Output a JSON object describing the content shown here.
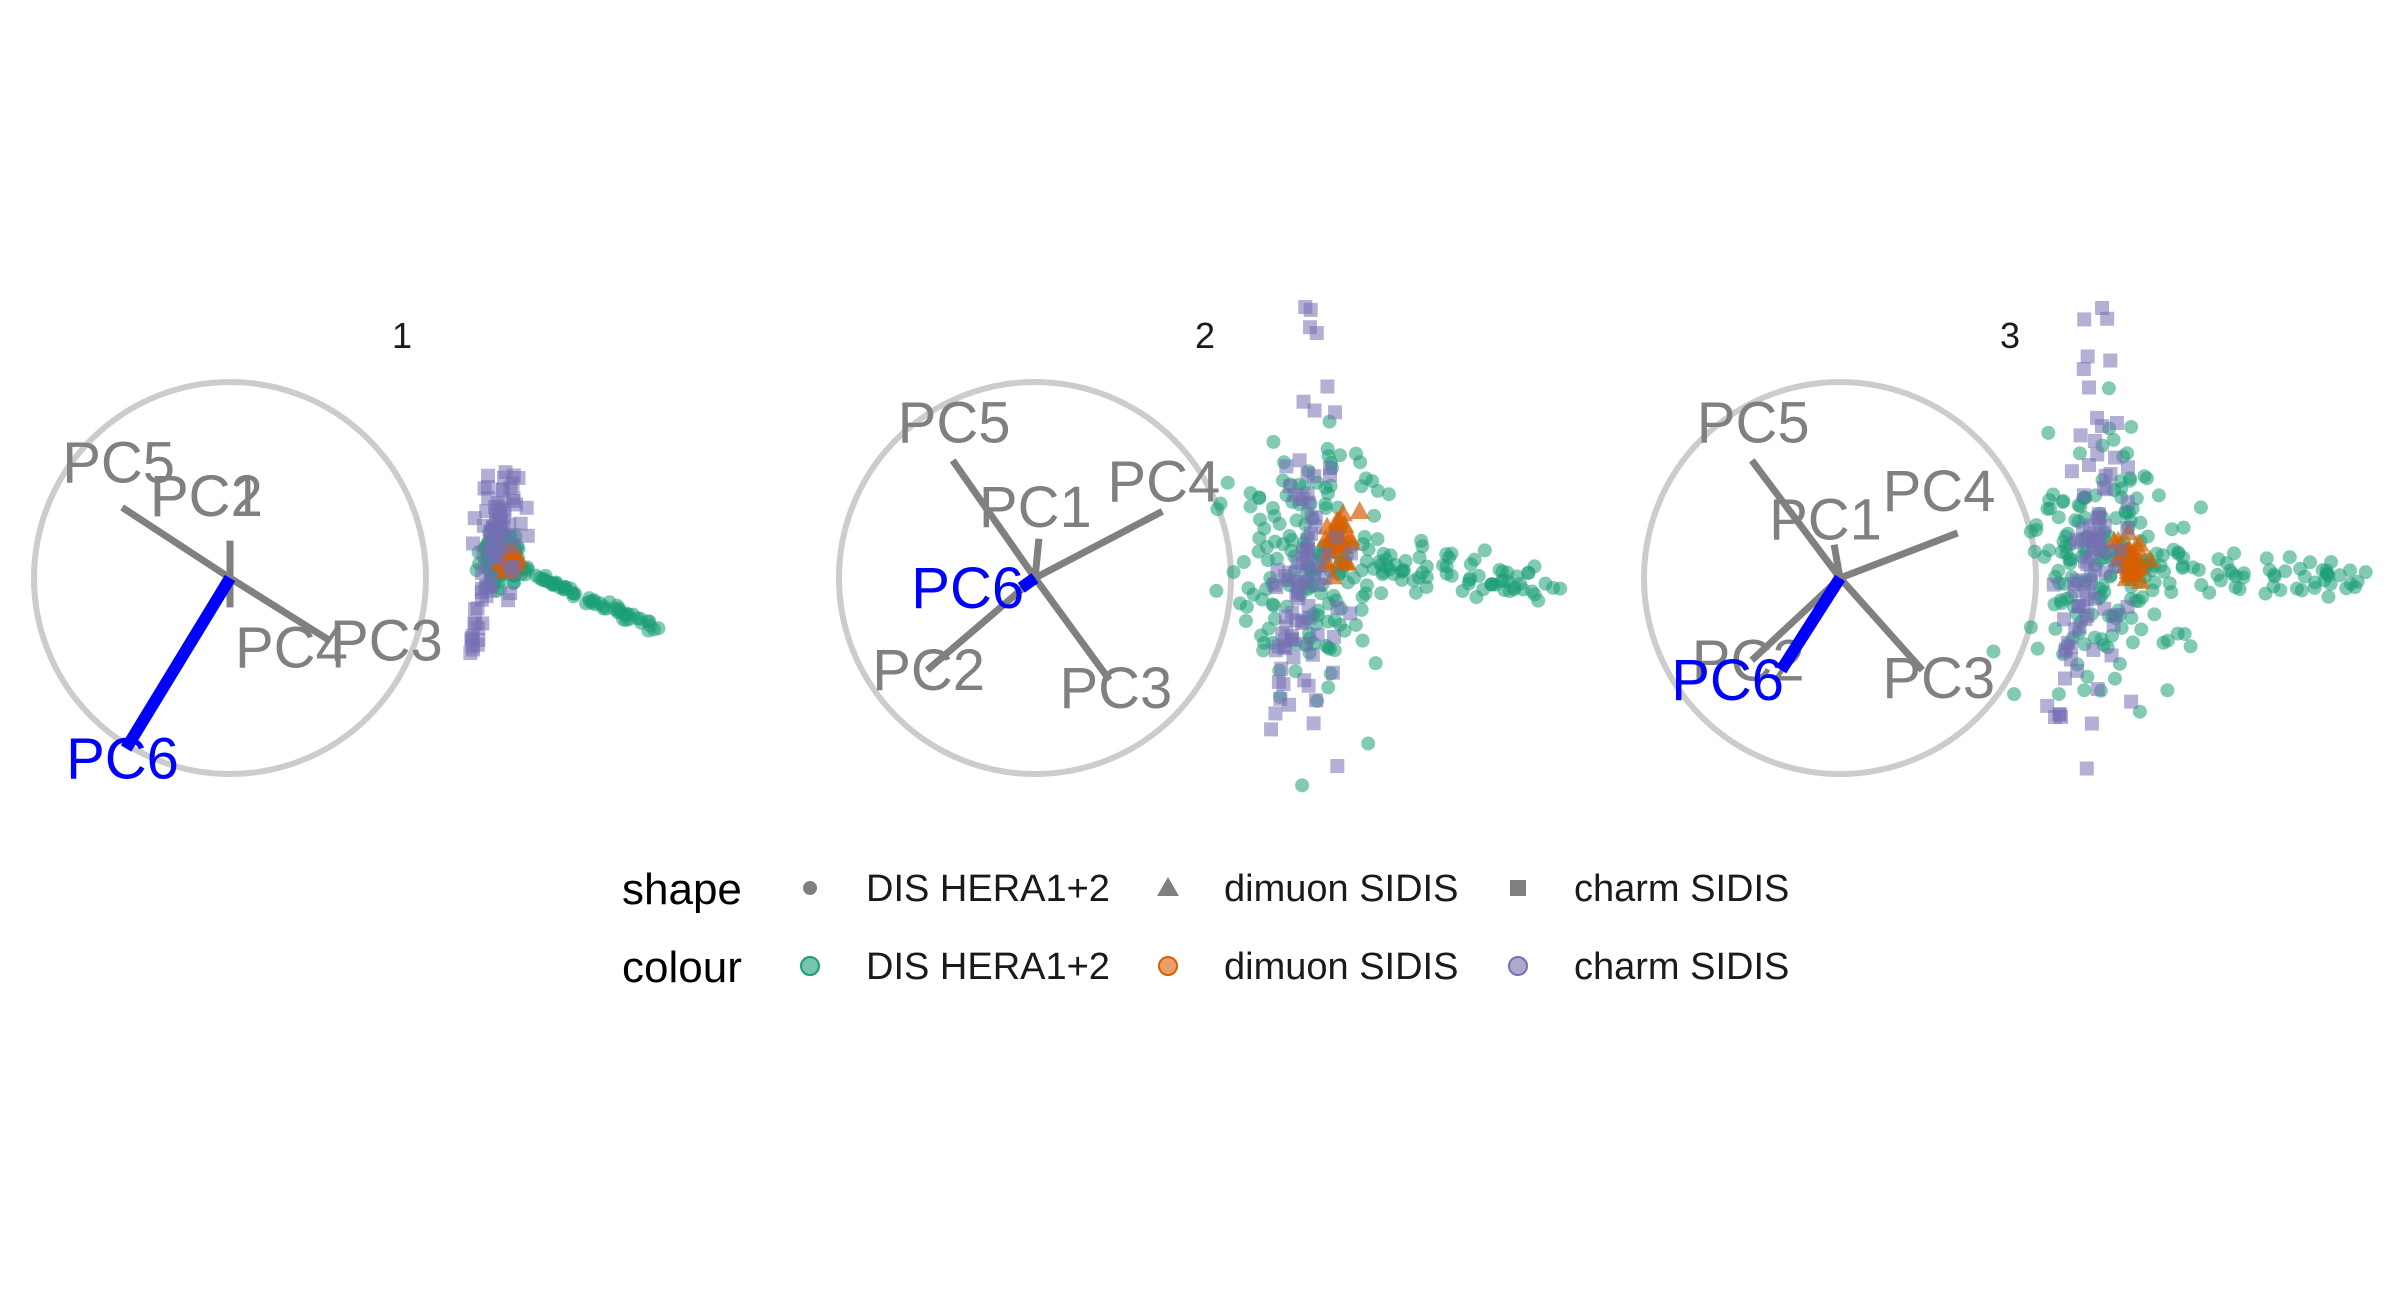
{
  "chart_data": {
    "type": "scatter",
    "description_kind": "small-multiple PCA biplot projections",
    "panels": [
      {
        "title": "1",
        "highlight": "PC6",
        "loadings": [
          {
            "name": "PC1",
            "x": 0.0,
            "y": 0.19,
            "highlight": false
          },
          {
            "name": "PC2",
            "x": 0.0,
            "y": 0.19,
            "highlight": false
          },
          {
            "name": "PC3",
            "x": 0.51,
            "y": -0.32,
            "highlight": false
          },
          {
            "name": "PC4",
            "x": 0.0,
            "y": -0.15,
            "highlight": false
          },
          {
            "name": "PC5",
            "x": -0.55,
            "y": 0.36,
            "highlight": false
          },
          {
            "name": "PC6",
            "x": -0.53,
            "y": -0.87,
            "highlight": true
          }
        ],
        "clusters": {
          "DIS HERA1+2": {
            "center": [
              0.0,
              0.0
            ],
            "spread": [
              0.05,
              0.06
            ],
            "tail": [
              0.8,
              -0.35
            ]
          },
          "dimuon SIDIS": {
            "center": [
              0.05,
              0.0
            ],
            "spread": [
              0.03,
              0.03
            ]
          },
          "charm SIDIS": {
            "center": [
              0.0,
              0.18
            ],
            "spread": [
              0.06,
              0.15
            ],
            "tail": [
              -0.15,
              -0.65
            ]
          }
        }
      },
      {
        "title": "2",
        "highlight": "PC6",
        "loadings": [
          {
            "name": "PC1",
            "x": 0.02,
            "y": 0.2,
            "highlight": false
          },
          {
            "name": "PC2",
            "x": -0.55,
            "y": -0.47,
            "highlight": false
          },
          {
            "name": "PC3",
            "x": 0.38,
            "y": -0.52,
            "highlight": false
          },
          {
            "name": "PC4",
            "x": 0.65,
            "y": 0.34,
            "highlight": false
          },
          {
            "name": "PC5",
            "x": -0.42,
            "y": 0.6,
            "highlight": false
          },
          {
            "name": "PC6",
            "x": -0.07,
            "y": -0.05,
            "highlight": true
          }
        ],
        "clusters": {
          "DIS HERA1+2": {
            "center": [
              0.0,
              0.0
            ],
            "spread": [
              0.2,
              0.35
            ],
            "tail": [
              1.2,
              -0.1
            ]
          },
          "dimuon SIDIS": {
            "center": [
              0.15,
              0.1
            ],
            "spread": [
              0.04,
              0.08
            ]
          },
          "charm SIDIS": {
            "center": [
              0.0,
              0.1
            ],
            "spread": [
              0.08,
              0.5
            ],
            "tail": [
              -0.2,
              -0.9
            ]
          }
        }
      },
      {
        "title": "3",
        "highlight": "PC6",
        "loadings": [
          {
            "name": "PC1",
            "x": -0.03,
            "y": 0.17,
            "highlight": false
          },
          {
            "name": "PC2",
            "x": -0.45,
            "y": -0.42,
            "highlight": false
          },
          {
            "name": "PC3",
            "x": 0.42,
            "y": -0.47,
            "highlight": false
          },
          {
            "name": "PC4",
            "x": 0.6,
            "y": 0.23,
            "highlight": false
          },
          {
            "name": "PC5",
            "x": -0.45,
            "y": 0.6,
            "highlight": false
          },
          {
            "name": "PC6",
            "x": -0.3,
            "y": -0.47,
            "highlight": true
          }
        ],
        "clusters": {
          "DIS HERA1+2": {
            "center": [
              0.0,
              0.0
            ],
            "spread": [
              0.2,
              0.3
            ],
            "tail": [
              1.3,
              -0.1
            ]
          },
          "dimuon SIDIS": {
            "center": [
              0.15,
              0.0
            ],
            "spread": [
              0.04,
              0.06
            ]
          },
          "charm SIDIS": {
            "center": [
              0.0,
              0.15
            ],
            "spread": [
              0.08,
              0.55
            ],
            "tail": [
              -0.25,
              -1.0
            ]
          }
        }
      }
    ],
    "legend": {
      "placement": "bottom",
      "shape": {
        "title": "shape",
        "entries": [
          {
            "label": "DIS HERA1+2",
            "shape": "circle"
          },
          {
            "label": "dimuon SIDIS",
            "shape": "triangle"
          },
          {
            "label": "charm SIDIS",
            "shape": "square"
          }
        ]
      },
      "colour": {
        "title": "colour",
        "entries": [
          {
            "label": "DIS HERA1+2",
            "color": "#1b9e77"
          },
          {
            "label": "dimuon SIDIS",
            "color": "#d95f02"
          },
          {
            "label": "charm SIDIS",
            "color": "#7570b3"
          }
        ]
      }
    },
    "colors": {
      "circle": "#cccccc",
      "loading": "#808080",
      "highlight": "#0000ff",
      "shape_key": "#7f7f7f"
    },
    "grid": false,
    "axes_visible": false
  }
}
